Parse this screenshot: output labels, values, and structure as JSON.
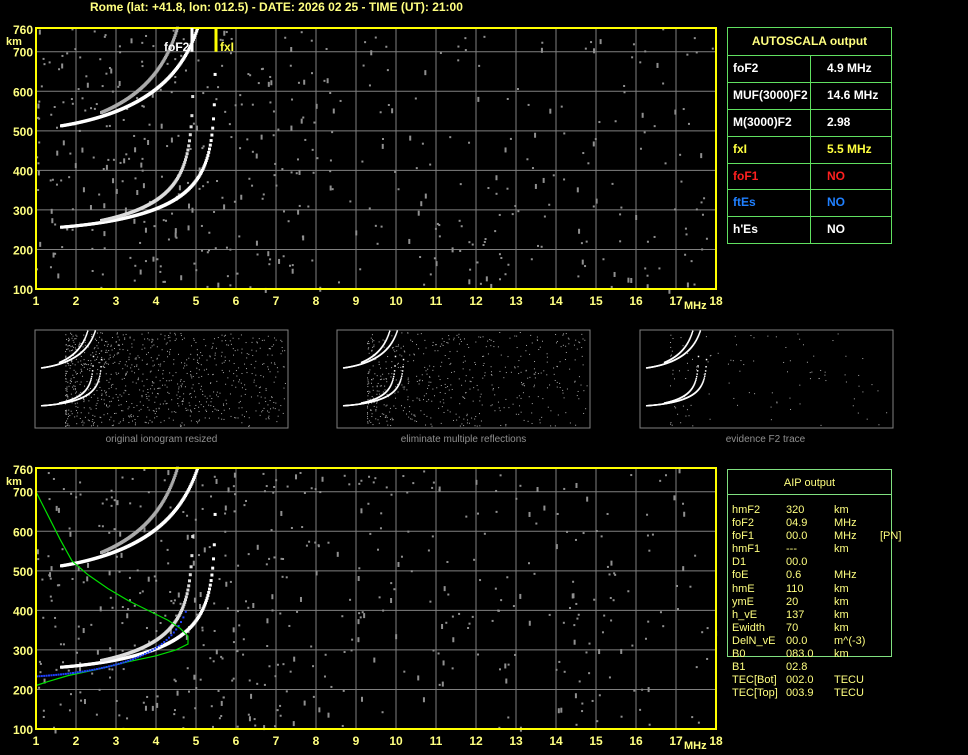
{
  "title": "Rome (lat: +41.8, lon: 012.5) - DATE: 2026 02 25 - TIME (UT): 21:00",
  "axes": {
    "x_ticks": [
      "1",
      "2",
      "3",
      "4",
      "5",
      "6",
      "7",
      "8",
      "9",
      "10",
      "11",
      "12",
      "13",
      "14",
      "15",
      "16",
      "17",
      "18"
    ],
    "x_unit": "MHz",
    "y_ticks": [
      "100",
      "200",
      "300",
      "400",
      "500",
      "600",
      "700",
      "760"
    ],
    "y_unit": "km"
  },
  "markers": {
    "foF2_label": "foF2",
    "fxI_label": "fxI",
    "foF2_mhz": 4.9,
    "fxI_mhz": 5.5
  },
  "autoscala": {
    "header": "AUTOSCALA output",
    "rows": [
      {
        "key": "foF2",
        "value": "4.9 MHz",
        "color": "#ffffff"
      },
      {
        "key": "MUF(3000)F2",
        "value": "14.6 MHz",
        "color": "#ffffff"
      },
      {
        "key": "M(3000)F2",
        "value": "2.98",
        "color": "#ffffff"
      },
      {
        "key": "fxI",
        "value": "5.5 MHz",
        "color": "#ffff40"
      },
      {
        "key": "foF1",
        "value": "NO",
        "color": "#ff2020"
      },
      {
        "key": "ftEs",
        "value": "NO",
        "color": "#2080ff"
      },
      {
        "key": "h'Es",
        "value": "NO",
        "color": "#ffffff"
      }
    ]
  },
  "thumbnails": [
    {
      "caption": "original ionogram resized"
    },
    {
      "caption": "eliminate multiple reflections"
    },
    {
      "caption": "evidence F2 trace"
    }
  ],
  "aip": {
    "header": "AIP output",
    "rows": [
      [
        "hmF2",
        "320",
        "km",
        ""
      ],
      [
        "foF2",
        "04.9",
        "MHz",
        ""
      ],
      [
        "foF1",
        "00.0",
        "MHz",
        "[PN]"
      ],
      [
        "hmF1",
        "---",
        "km",
        ""
      ],
      [
        "D1",
        "00.0",
        "",
        ""
      ],
      [
        "foE",
        "0.6",
        "MHz",
        ""
      ],
      [
        "hmE",
        "110",
        "km",
        ""
      ],
      [
        "ymE",
        "20",
        "km",
        ""
      ],
      [
        "h_vE",
        "137",
        "km",
        ""
      ],
      [
        "Ewidth",
        "70",
        "km",
        ""
      ],
      [
        "DelN_vE",
        "00.0",
        "m^(-3)",
        ""
      ],
      [
        "B0",
        "083.0",
        "km",
        ""
      ],
      [
        "B1",
        "02.8",
        "",
        ""
      ],
      [
        "TEC[Bot]",
        "002.0",
        "TECU",
        ""
      ],
      [
        "TEC[Top]",
        "003.9",
        "TECU",
        ""
      ]
    ]
  },
  "colors": {
    "axis": "#ffff00",
    "grid": "#808080",
    "table_border": "#60e060",
    "profile": "#00e000",
    "trace_fit": "#2040ff"
  }
}
